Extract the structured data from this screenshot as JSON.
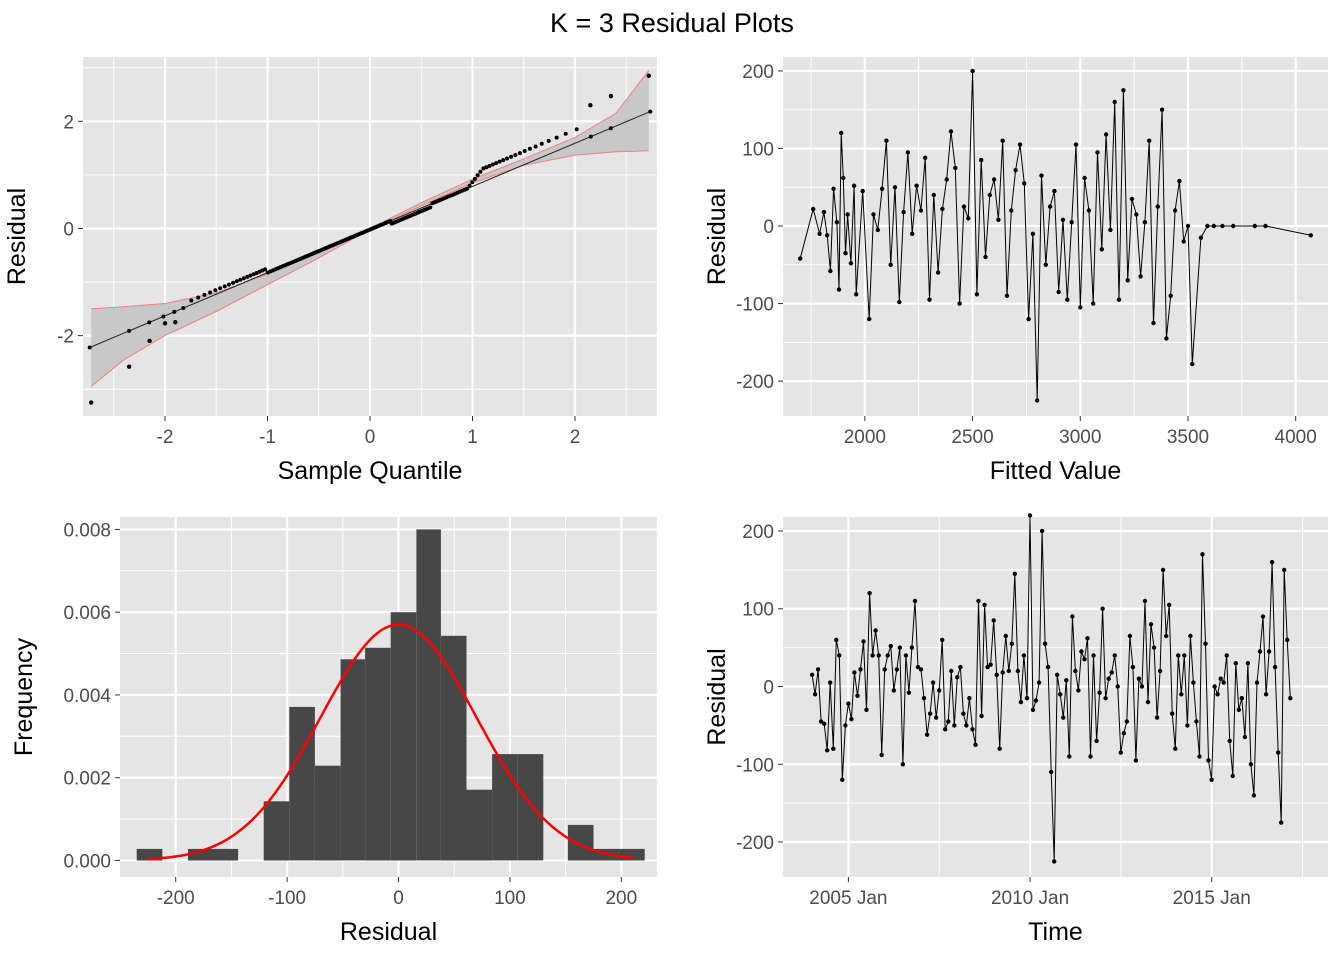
{
  "figure_title": "K = 3 Residual Plots",
  "colors": {
    "panel_bg": "#e5e5e5",
    "grid": "#ffffff",
    "points": "#000000",
    "band_fill": "#c8c8c8",
    "band_edge": "#f08080",
    "density": "#ff0000",
    "bars": "#474747",
    "axis_text": "#4d4d4d"
  },
  "chart_data": [
    {
      "id": "qq",
      "type": "scatter",
      "title": "",
      "xlabel": "Sample Quantile",
      "ylabel": "Residual",
      "xlim": [
        -2.8,
        2.8
      ],
      "ylim": [
        -3.5,
        3.2
      ],
      "xticks": [
        -2,
        -1,
        0,
        1,
        2
      ],
      "xtick_labels": [
        "-2",
        "-1",
        "0",
        "1",
        "2"
      ],
      "yticks": [
        -2,
        0,
        2
      ],
      "ytick_labels": [
        "-2",
        "0",
        "2"
      ],
      "reference_line": {
        "intercept": -0.02,
        "slope": 0.805
      },
      "confidence_band": {
        "x": [
          -2.72,
          -2.4,
          -2.0,
          -1.5,
          -1.0,
          -0.5,
          0,
          0.5,
          1.0,
          1.5,
          2.0,
          2.4,
          2.72
        ],
        "lower": [
          -2.95,
          -2.45,
          -2.0,
          -1.55,
          -1.05,
          -0.55,
          -0.02,
          0.42,
          0.85,
          1.18,
          1.37,
          1.43,
          1.45
        ],
        "upper": [
          -1.5,
          -1.46,
          -1.4,
          -1.2,
          -0.85,
          -0.45,
          0.0,
          0.48,
          0.92,
          1.3,
          1.7,
          2.15,
          2.95
        ]
      },
      "points_note": "sample quantiles of standardized residuals (n=160)",
      "n_points": 160,
      "extreme_points": [
        [
          -2.72,
          -3.25
        ],
        [
          -2.35,
          -2.58
        ],
        [
          -2.15,
          -2.1
        ],
        [
          -2.0,
          -1.77
        ],
        [
          -1.9,
          -1.75
        ],
        [
          2.15,
          2.3
        ],
        [
          2.35,
          2.47
        ],
        [
          2.72,
          2.85
        ]
      ]
    },
    {
      "id": "fitted",
      "type": "line",
      "title": "",
      "xlabel": "Fitted Value",
      "ylabel": "Residual",
      "xlim": [
        1620,
        4150
      ],
      "ylim": [
        -245,
        218
      ],
      "xticks": [
        2000,
        2500,
        3000,
        3500,
        4000
      ],
      "xtick_labels": [
        "2000",
        "2500",
        "3000",
        "3500",
        "4000"
      ],
      "yticks": [
        -200,
        -100,
        0,
        100,
        200
      ],
      "ytick_labels": [
        "-200",
        "-100",
        "0",
        "100",
        "200"
      ],
      "x": [
        1700,
        1760,
        1790,
        1810,
        1825,
        1840,
        1855,
        1870,
        1880,
        1890,
        1900,
        1910,
        1920,
        1935,
        1950,
        1960,
        1990,
        2020,
        2040,
        2060,
        2080,
        2100,
        2120,
        2140,
        2160,
        2180,
        2200,
        2220,
        2240,
        2260,
        2280,
        2300,
        2320,
        2340,
        2360,
        2380,
        2400,
        2420,
        2440,
        2460,
        2480,
        2500,
        2520,
        2540,
        2560,
        2580,
        2600,
        2620,
        2640,
        2660,
        2680,
        2700,
        2720,
        2740,
        2760,
        2780,
        2800,
        2820,
        2840,
        2860,
        2880,
        2900,
        2920,
        2940,
        2960,
        2980,
        3000,
        3020,
        3040,
        3060,
        3080,
        3100,
        3120,
        3140,
        3160,
        3180,
        3200,
        3220,
        3240,
        3260,
        3280,
        3300,
        3320,
        3340,
        3360,
        3380,
        3400,
        3420,
        3440,
        3460,
        3480,
        3500,
        3520,
        3560,
        3590,
        3620,
        3660,
        3710,
        3810,
        3860,
        4070
      ],
      "y": [
        -42,
        22,
        -10,
        18,
        -12,
        -58,
        48,
        5,
        -82,
        120,
        62,
        -35,
        15,
        -48,
        52,
        -88,
        45,
        -120,
        15,
        -5,
        48,
        110,
        -50,
        50,
        -98,
        18,
        95,
        -10,
        52,
        20,
        88,
        -95,
        40,
        -60,
        22,
        60,
        122,
        75,
        -100,
        25,
        10,
        200,
        -88,
        85,
        -40,
        40,
        60,
        8,
        110,
        -90,
        20,
        72,
        105,
        55,
        -120,
        -10,
        -225,
        65,
        -50,
        25,
        45,
        -85,
        8,
        -95,
        5,
        105,
        -105,
        62,
        20,
        -100,
        95,
        -30,
        118,
        -5,
        160,
        -95,
        175,
        -70,
        35,
        15,
        -65,
        5,
        110,
        -125,
        25,
        150,
        -145,
        -90,
        20,
        58,
        -20,
        0,
        -178,
        -15,
        0,
        0,
        0,
        0,
        0,
        0,
        -12
      ],
      "series_note": "residual vs fitted value, connected in order"
    },
    {
      "id": "hist",
      "type": "bar",
      "title": "",
      "xlabel": "Residual",
      "ylabel": "Frequency",
      "xlim": [
        -250,
        232
      ],
      "ylim": [
        -0.0004,
        0.0083
      ],
      "xticks": [
        -200,
        -100,
        0,
        100,
        200
      ],
      "xtick_labels": [
        "-200",
        "-100",
        "0",
        "100",
        "200"
      ],
      "yticks": [
        0.0,
        0.002,
        0.004,
        0.006,
        0.008
      ],
      "ytick_labels": [
        "0.000",
        "0.002",
        "0.004",
        "0.006",
        "0.008"
      ],
      "bin_edges": [
        -235,
        -212,
        -189,
        -167,
        -144,
        -121,
        -98,
        -75,
        -52,
        -30,
        -7,
        16,
        38,
        61,
        84,
        107,
        130,
        152,
        175,
        198,
        221
      ],
      "values": [
        0.00028,
        0.0,
        0.00028,
        0.00028,
        0.0,
        0.00143,
        0.00371,
        0.00229,
        0.00486,
        0.00514,
        0.006,
        0.008,
        0.00543,
        0.00171,
        0.00257,
        0.00257,
        0.0,
        0.00086,
        0.00028,
        0.00028
      ],
      "density": {
        "mean": 0,
        "sd": 70,
        "peak": 0.0057
      }
    },
    {
      "id": "time",
      "type": "line",
      "title": "",
      "xlabel": "Time",
      "ylabel": "Residual",
      "xlim": [
        2003.2,
        2018.2
      ],
      "ylim": [
        -245,
        218
      ],
      "xticks": [
        2005.0,
        2010.0,
        2015.0
      ],
      "xtick_labels": [
        "2005 Jan",
        "2010 Jan",
        "2015 Jan"
      ],
      "yticks": [
        -200,
        -100,
        0,
        100,
        200
      ],
      "ytick_labels": [
        "-200",
        "-100",
        "0",
        "100",
        "200"
      ],
      "x_start": 2004.0,
      "x_step": 0.0833,
      "y": [
        15,
        -10,
        22,
        -45,
        -48,
        -82,
        5,
        -80,
        60,
        40,
        -120,
        -50,
        -22,
        -42,
        18,
        -12,
        22,
        58,
        -30,
        120,
        40,
        72,
        40,
        -88,
        22,
        40,
        52,
        -5,
        22,
        50,
        -100,
        40,
        -8,
        50,
        110,
        25,
        22,
        -15,
        -62,
        -35,
        5,
        -40,
        -5,
        60,
        -55,
        -45,
        20,
        -50,
        12,
        25,
        -35,
        -50,
        -15,
        -55,
        -75,
        110,
        -38,
        105,
        25,
        28,
        85,
        15,
        -80,
        18,
        65,
        20,
        55,
        145,
        20,
        -20,
        40,
        -15,
        220,
        -30,
        -18,
        5,
        200,
        55,
        25,
        -110,
        -225,
        15,
        -10,
        -40,
        8,
        -90,
        90,
        20,
        -5,
        45,
        35,
        62,
        -90,
        40,
        -70,
        -8,
        100,
        -15,
        10,
        18,
        40,
        0,
        -85,
        -60,
        -45,
        65,
        25,
        -95,
        10,
        0,
        110,
        -20,
        80,
        50,
        -40,
        20,
        150,
        65,
        105,
        -35,
        -80,
        40,
        -10,
        40,
        -50,
        65,
        5,
        -45,
        -90,
        170,
        55,
        -95,
        -120,
        0,
        -10,
        10,
        5,
        40,
        -70,
        -115,
        30,
        -30,
        -15,
        -65,
        30,
        -100,
        -140,
        5,
        45,
        90,
        -10,
        45,
        160,
        25,
        -85,
        -175,
        150,
        60,
        -15
      ],
      "series_note": "monthly residuals 2004-2017, connected"
    }
  ]
}
